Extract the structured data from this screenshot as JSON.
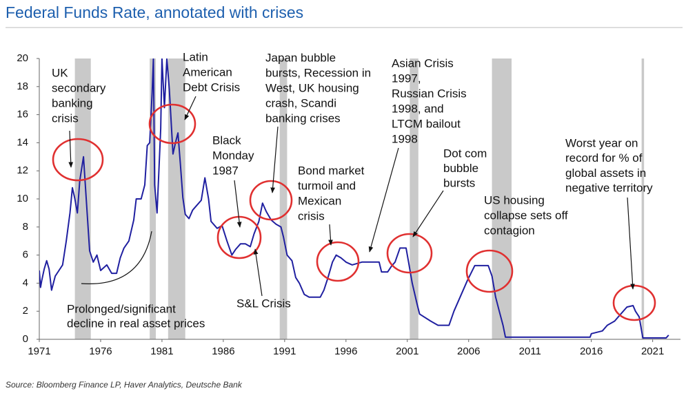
{
  "chart_data": {
    "type": "line",
    "title": "Federal Funds Rate, annotated with crises",
    "source": "Source: Bloomberg Finance LP, Haver Analytics, Deutsche Bank",
    "color": "#1f1fa0",
    "recession_color": "#c9c9c9",
    "xlim": [
      1971,
      2023.1
    ],
    "xticks": [
      1971,
      1976,
      1981,
      1986,
      1991,
      1996,
      2001,
      2006,
      2011,
      2016,
      2021
    ],
    "ylim": [
      0,
      20
    ],
    "yticks": [
      0,
      2,
      4,
      6,
      8,
      10,
      12,
      14,
      16,
      18,
      20
    ],
    "recessions": [
      [
        1973.9,
        1975.2
      ],
      [
        1980.0,
        1980.5
      ],
      [
        1981.5,
        1982.9
      ],
      [
        1990.6,
        1991.2
      ],
      [
        2001.2,
        2001.9
      ],
      [
        2007.9,
        2009.5
      ],
      [
        2020.1,
        2020.3
      ]
    ],
    "x": [
      1971.0,
      1971.1,
      1971.2,
      1971.4,
      1971.6,
      1971.8,
      1972.0,
      1972.3,
      1972.6,
      1972.9,
      1973.2,
      1973.5,
      1973.7,
      1973.9,
      1974.1,
      1974.3,
      1974.6,
      1974.9,
      1975.1,
      1975.4,
      1975.7,
      1976.0,
      1976.5,
      1976.9,
      1977.3,
      1977.6,
      1977.9,
      1978.3,
      1978.7,
      1978.9,
      1979.3,
      1979.6,
      1979.8,
      1980.0,
      1980.2,
      1980.3,
      1980.4,
      1980.6,
      1980.9,
      1981.0,
      1981.2,
      1981.4,
      1981.6,
      1981.9,
      1982.1,
      1982.3,
      1982.5,
      1982.7,
      1982.9,
      1983.2,
      1983.5,
      1983.8,
      1984.2,
      1984.5,
      1984.8,
      1985.0,
      1985.5,
      1985.9,
      1986.3,
      1986.7,
      1987.0,
      1987.4,
      1987.8,
      1988.2,
      1988.5,
      1988.9,
      1989.2,
      1989.5,
      1989.9,
      1990.3,
      1990.7,
      1990.9,
      1991.2,
      1991.6,
      1991.9,
      1992.2,
      1992.6,
      1993.0,
      1993.9,
      1994.2,
      1994.5,
      1994.9,
      1995.2,
      1995.6,
      1996.0,
      1996.5,
      1997.3,
      1998.7,
      1998.9,
      1999.4,
      1999.7,
      2000.0,
      2000.4,
      2000.9,
      2001.1,
      2001.4,
      2001.8,
      2002.0,
      2002.9,
      2003.5,
      2004.4,
      2004.8,
      2005.3,
      2005.9,
      2006.5,
      2007.6,
      2007.9,
      2008.2,
      2008.5,
      2008.8,
      2009.0,
      2012.0,
      2015.9,
      2016.0,
      2016.9,
      2017.3,
      2017.9,
      2018.3,
      2018.9,
      2019.4,
      2019.6,
      2019.9,
      2020.2,
      2022.1,
      2022.3
    ],
    "values": [
      4.9,
      3.7,
      4.2,
      5.0,
      5.6,
      5.0,
      3.5,
      4.5,
      4.9,
      5.3,
      7.0,
      9.0,
      10.8,
      10.0,
      9.0,
      11.3,
      13.0,
      9.0,
      6.3,
      5.5,
      6.0,
      4.9,
      5.3,
      4.7,
      4.7,
      5.8,
      6.5,
      7.0,
      8.5,
      10.0,
      10.0,
      11.0,
      13.8,
      14.0,
      17.6,
      20.0,
      11.0,
      9.0,
      15.0,
      20.0,
      16.5,
      20.0,
      17.8,
      13.2,
      14.0,
      14.7,
      12.5,
      10.1,
      8.9,
      8.6,
      9.2,
      9.5,
      9.9,
      11.5,
      10.0,
      8.4,
      7.9,
      8.1,
      7.0,
      6.0,
      6.4,
      6.8,
      6.8,
      6.6,
      7.5,
      8.4,
      9.7,
      9.1,
      8.5,
      8.2,
      8.0,
      7.3,
      6.0,
      5.6,
      4.4,
      4.0,
      3.2,
      3.0,
      3.0,
      3.5,
      4.3,
      5.5,
      6.0,
      5.8,
      5.5,
      5.3,
      5.5,
      5.5,
      4.8,
      4.8,
      5.2,
      5.5,
      6.5,
      6.5,
      5.5,
      4.0,
      2.5,
      1.8,
      1.3,
      1.0,
      1.0,
      2.0,
      3.0,
      4.2,
      5.25,
      5.25,
      4.5,
      3.0,
      2.0,
      1.0,
      0.15,
      0.15,
      0.15,
      0.4,
      0.6,
      1.0,
      1.3,
      1.7,
      2.3,
      2.4,
      2.0,
      1.6,
      0.1,
      0.1,
      0.3
    ],
    "annotations": [
      [
        "UK",
        "secondary",
        "banking",
        "crisis"
      ],
      [
        "Latin",
        "American",
        "Debt Crisis"
      ],
      [
        "Black",
        "Monday",
        "1987"
      ],
      [
        "Japan bubble",
        "bursts, Recession in",
        "West, UK housing",
        "crash, Scandi",
        "banking crises"
      ],
      [
        "Bond market",
        "turmoil and",
        "Mexican",
        "crisis"
      ],
      [
        "Asian Crisis",
        "1997,",
        "Russian Crisis",
        "1998, and",
        "LTCM bailout",
        "1998"
      ],
      [
        "Dot com",
        "bubble",
        "bursts"
      ],
      [
        "US housing",
        "collapse sets off",
        "contagion"
      ],
      [
        "Worst year on",
        "record for % of",
        "global assets in",
        "negative territory"
      ],
      [
        "S&L Crisis"
      ],
      [
        "Prolonged/significant",
        "decline in real asset prices"
      ]
    ]
  }
}
